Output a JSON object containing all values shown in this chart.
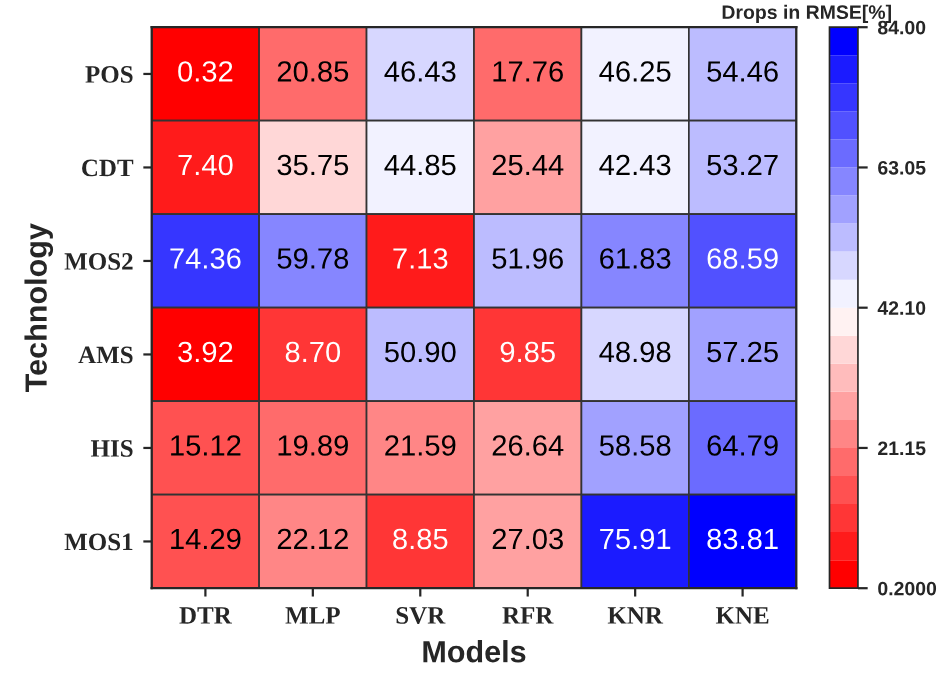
{
  "chart_data": {
    "type": "heatmap",
    "xlabel": "Models",
    "ylabel": "Technology",
    "clabel": "Drops in RMSE[%]",
    "categories": [
      "DTR",
      "MLP",
      "SVR",
      "RFR",
      "KNR",
      "KNE"
    ],
    "y_categories": [
      "POS",
      "CDT",
      "MOS2",
      "AMS",
      "HIS",
      "MOS1"
    ],
    "cells": [
      [
        0.32,
        20.85,
        46.43,
        17.76,
        46.25,
        54.46
      ],
      [
        7.4,
        35.75,
        44.85,
        25.44,
        42.43,
        53.27
      ],
      [
        74.36,
        59.78,
        7.13,
        51.96,
        61.83,
        68.59
      ],
      [
        3.92,
        8.7,
        50.9,
        9.85,
        48.98,
        57.25
      ],
      [
        15.12,
        19.89,
        21.59,
        26.64,
        58.58,
        64.79
      ],
      [
        14.29,
        22.12,
        8.85,
        27.03,
        75.91,
        83.81
      ]
    ],
    "cell_labels": [
      [
        "0.32",
        "20.85",
        "46.43",
        "17.76",
        "46.25",
        "54.46"
      ],
      [
        "7.40",
        "35.75",
        "44.85",
        "25.44",
        "42.43",
        "53.27"
      ],
      [
        "74.36",
        "59.78",
        "7.13",
        "51.96",
        "61.83",
        "68.59"
      ],
      [
        "3.92",
        "8.70",
        "50.90",
        "9.85",
        "48.98",
        "57.25"
      ],
      [
        "15.12",
        "19.89",
        "21.59",
        "26.64",
        "58.58",
        "64.79"
      ],
      [
        "14.29",
        "22.12",
        "8.85",
        "27.03",
        "75.91",
        "83.81"
      ]
    ],
    "clim": [
      0.2,
      84.0
    ],
    "cticks": [
      {
        "value": 0.2,
        "label": "0.2000"
      },
      21.15,
      {
        "value": 42.1,
        "label": "42.10"
      },
      {
        "value": 63.05,
        "label": "63.05"
      },
      {
        "value": 84.0,
        "label": "84.00"
      }
    ]
  }
}
